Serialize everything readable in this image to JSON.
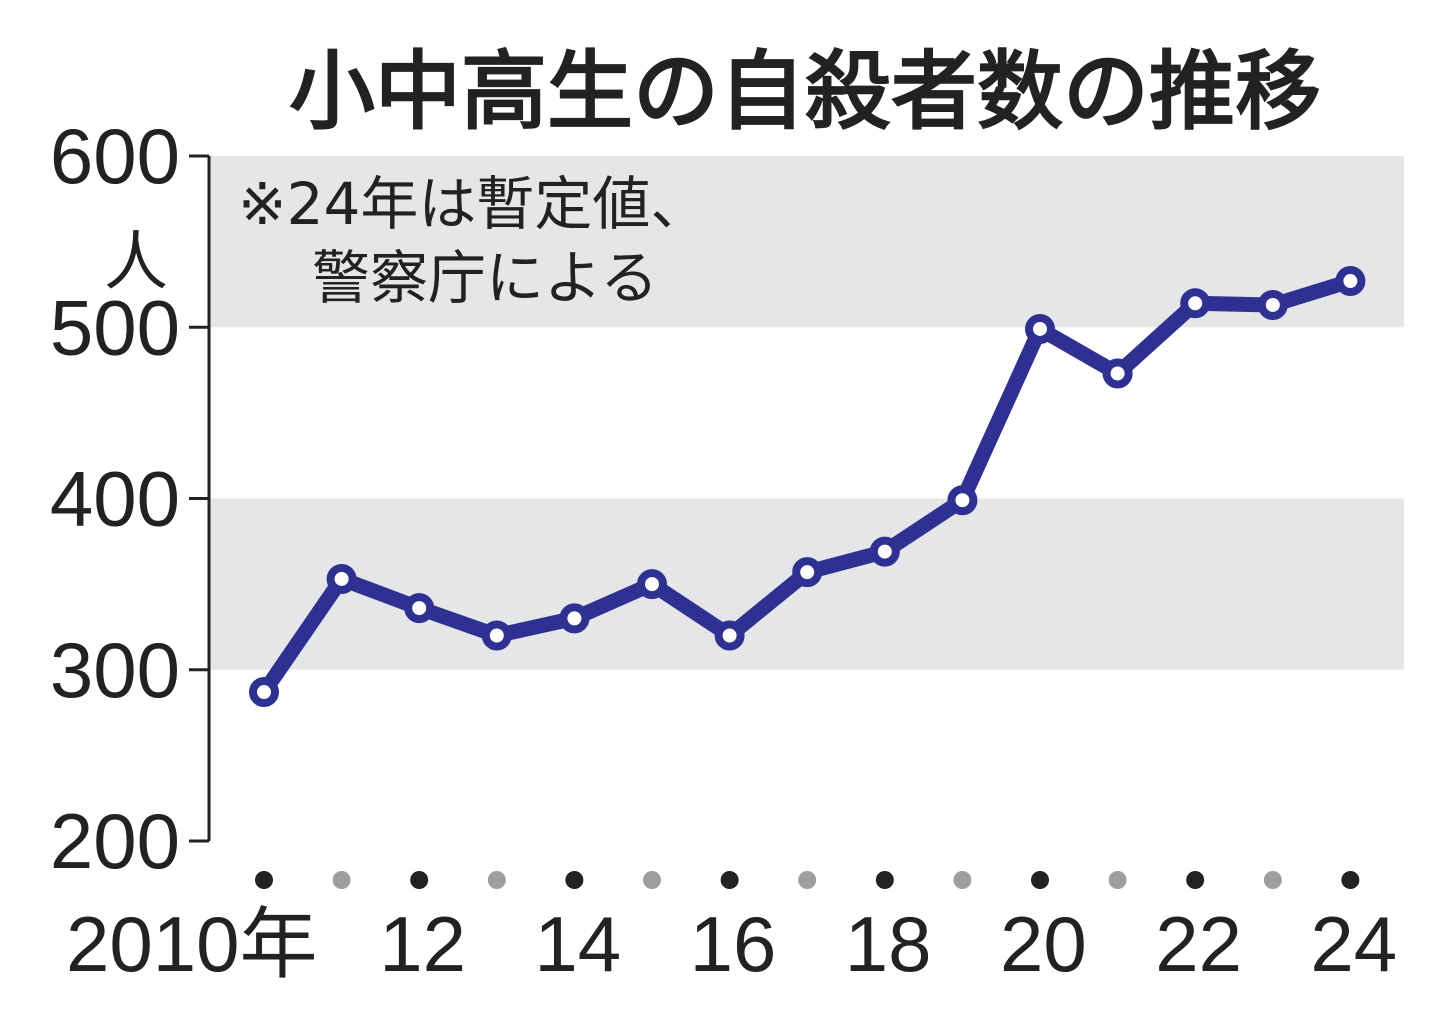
{
  "chart_data": {
    "type": "line",
    "title": "小中高生の自殺者数の推移",
    "note_line1": "※24年は暫定値、",
    "note_line2": "警察庁による",
    "ylabel": "人",
    "ylim": [
      200,
      600
    ],
    "yticks": [
      600,
      500,
      400,
      300,
      200
    ],
    "bands": [
      [
        500,
        600
      ],
      [
        300,
        400
      ]
    ],
    "x": [
      2010,
      2011,
      2012,
      2013,
      2014,
      2015,
      2016,
      2017,
      2018,
      2019,
      2020,
      2021,
      2022,
      2023,
      2024
    ],
    "xtick_labels": [
      "2010年",
      "",
      "12",
      "",
      "14",
      "",
      "16",
      "",
      "18",
      "",
      "20",
      "",
      "22",
      "",
      "24"
    ],
    "series": [
      {
        "values": [
          287,
          353,
          336,
          320,
          330,
          350,
          320,
          357,
          369,
          399,
          499,
          473,
          514,
          513,
          527
        ]
      }
    ],
    "grid": false,
    "colors": {
      "line": "#2e3192",
      "band": "#e5e6e8",
      "text": "#222222",
      "dot_major": "#222222",
      "dot_minor": "#9e9e9e"
    }
  }
}
